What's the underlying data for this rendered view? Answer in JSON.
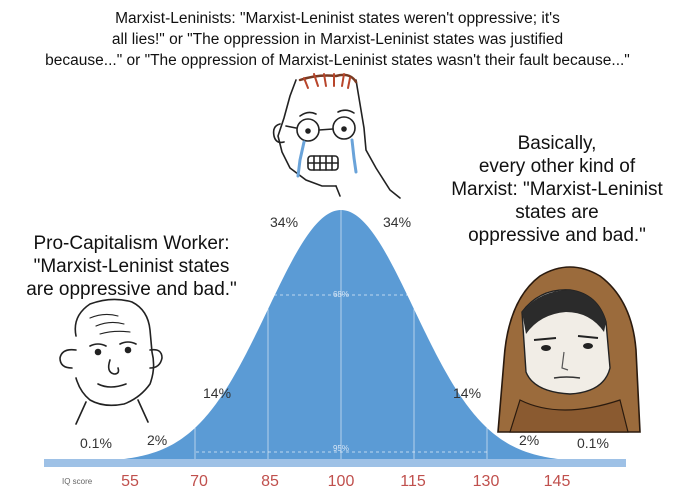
{
  "captions": {
    "top": [
      "Marxist-Leninists: \"Marxist-Leninist states weren't oppressive; it's",
      "all lies!\" or \"The oppression in Marxist-Leninist states was justified",
      "because...\" or \"The oppression of Marxist-Leninist states wasn't their fault because...\""
    ],
    "left": [
      "Pro-Capitalism Worker:",
      "\"Marxist-Leninist states",
      "are oppressive and bad.\""
    ],
    "right": [
      "Basically,",
      "every other kind of",
      "Marxist: \"Marxist-Leninist",
      "states are",
      "oppressive and bad.\""
    ]
  },
  "chart": {
    "axis_label": "IQ score",
    "ticks": [
      "55",
      "70",
      "85",
      "100",
      "115",
      "130",
      "145"
    ],
    "percent_labels": {
      "left_tail": "0.1%",
      "left_2": "2%",
      "left_14": "14%",
      "left_34": "34%",
      "right_34": "34%",
      "right_14": "14%",
      "right_2": "2%",
      "right_tail": "0.1%"
    },
    "inner_labels": {
      "band_68": "68%",
      "band_95": "95%"
    },
    "colors": {
      "curve_fill": "#5b9bd5",
      "axis": "#9ec1e6",
      "ticks": "#c0504d"
    }
  }
}
